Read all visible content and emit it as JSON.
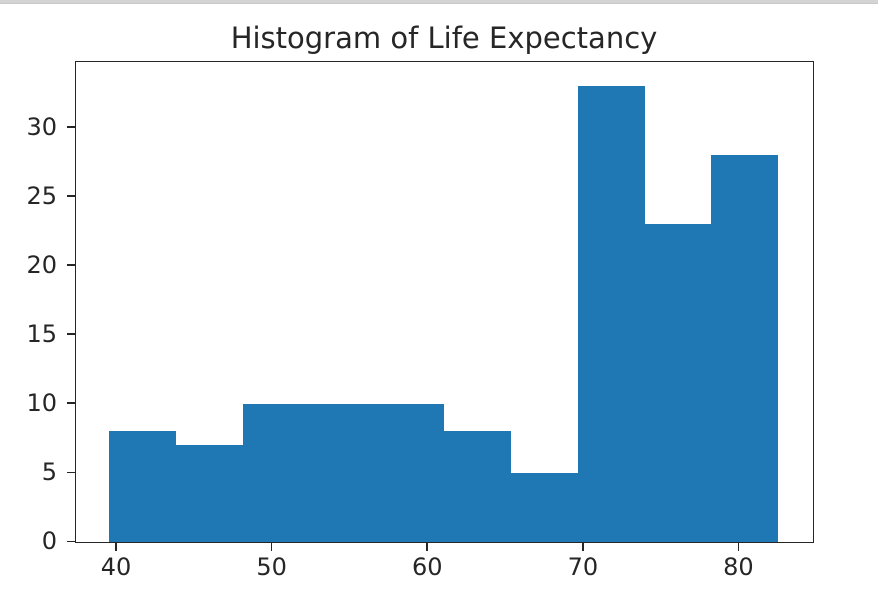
{
  "window": {
    "top_strip_color": "#d4d4d4",
    "top_strip_edge_color": "#c6c8c9",
    "background_color": "#ffffff"
  },
  "chart_data": {
    "type": "bar",
    "variant": "histogram",
    "title": "Histogram of Life Expectancy",
    "xlabel": "",
    "ylabel": "",
    "bin_edges": [
      39.613,
      43.912,
      48.211,
      52.51,
      56.809,
      61.108,
      65.407,
      69.706,
      74.005,
      78.304,
      82.603
    ],
    "counts": [
      8,
      7,
      10,
      10,
      10,
      8,
      5,
      33,
      23,
      28
    ],
    "total_count": 142,
    "x_ticks": [
      40,
      50,
      60,
      70,
      80
    ],
    "y_ticks": [
      0,
      5,
      10,
      15,
      20,
      25,
      30
    ],
    "xlim": [
      37.4635,
      84.7525
    ],
    "ylim": [
      0,
      34.65
    ],
    "grid": false,
    "legend": null,
    "bar_color": "#1f77b4",
    "axis_color": "#262626",
    "text_color": "#262626"
  }
}
